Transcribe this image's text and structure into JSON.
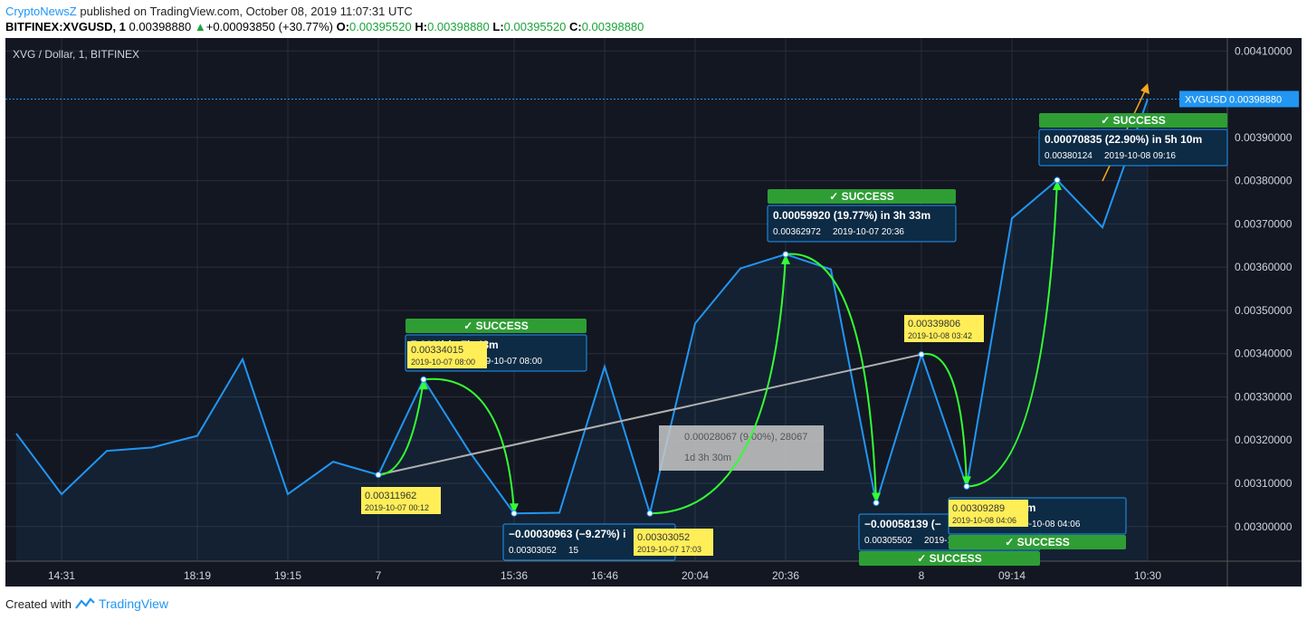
{
  "header": {
    "author": "CryptoNewsZ",
    "published": " published on TradingView.com, October 08, 2019 11:07:31 UTC",
    "symbol": "BITFINEX:XVGUSD, 1",
    "last": "0.00398880",
    "change": "+0.00093850 (+30.77%)",
    "o_label": "O:",
    "o": "0.00395520",
    "h_label": "H:",
    "h": "0.00398880",
    "l_label": "L:",
    "l": "0.00395520",
    "c_label": "C:",
    "c": "0.00398880"
  },
  "footer": {
    "created_with": "Created with",
    "brand": "TradingView"
  },
  "colors": {
    "background": "#131722",
    "line": "#2196f3",
    "success": "#2e9e34",
    "arrow": "#33ff33",
    "info_box": "#0d2b45",
    "yellow": "#ffee58",
    "trend": "#b0b0b0",
    "orange_arrow": "#f5a623"
  },
  "chart_data": {
    "type": "line",
    "title": "XVG / Dollar, 1, BITFINEX",
    "price_label": "XVGUSD",
    "current_price": 0.0039888,
    "current_price_text": "0.00398880",
    "ylim": [
      0.00292,
      0.00413
    ],
    "y_ticks": [
      0.003,
      0.0031,
      0.0032,
      0.0033,
      0.0034,
      0.0035,
      0.0036,
      0.0037,
      0.0038,
      0.0039,
      0.0041
    ],
    "y_tick_labels": [
      "0.00300000",
      "0.00310000",
      "0.00320000",
      "0.00330000",
      "0.00340000",
      "0.00350000",
      "0.00360000",
      "0.00370000",
      "0.00380000",
      "0.00390000",
      "0.00410000"
    ],
    "x_tick_labels": [
      "14:31",
      "18:19",
      "19:15",
      "7",
      "15:36",
      "16:46",
      "20:04",
      "20:36",
      "8",
      "09:14",
      "10:30"
    ],
    "x_tick_index": [
      2,
      8,
      12,
      16,
      22,
      26,
      30,
      34,
      40,
      44,
      50
    ],
    "series": [
      {
        "values": [
          0.003215,
          0.003075,
          0.003175,
          0.003183,
          0.00321,
          0.003387,
          0.003075,
          0.00315,
          0.00311962,
          0.00334015,
          0.003175,
          0.00303052,
          0.003032,
          0.00337,
          0.00303052,
          0.00347,
          0.003597,
          0.00362972,
          0.003595,
          0.00305502,
          0.00339806,
          0.00309289,
          0.003713,
          0.00380124,
          0.003692,
          0.0039888
        ]
      }
    ],
    "annotations": {
      "success_label": "SUCCESS",
      "boxes": [
        {
          "main": "0.00070835 (22.90%) in 5h 10m",
          "sub": "0.00380124",
          "date": "2019-10-08  09:16"
        },
        {
          "main": "0.00059920 (19.77%) in 3h 33m",
          "sub": "0.00362972",
          "date": "2019-10-07  20:36"
        },
        {
          "main": "7.00%) in 7h 48m",
          "sub": "",
          "date": "2019-10-07  08:00"
        },
        {
          "main": "−0.00030963 (−9.27%) i",
          "sub": "0.00303052",
          "date": "15"
        },
        {
          "main": "−0.00058139 (−",
          "sub": "0.00305502",
          "date": "2019-10-07  20:"
        },
        {
          "main": "(−8.98%) in 24m",
          "sub": "",
          "date": "019-10-08  04:06"
        }
      ],
      "yellow": [
        {
          "price": "0.00334015",
          "date": "2019-10-07 08:00"
        },
        {
          "price": "0.00311962",
          "date": "2019-10-07 00:12"
        },
        {
          "price": "0.00303052",
          "date": "2019-10-07 17:03"
        },
        {
          "price": "0.00339806",
          "date": "2019-10-08 03:42"
        },
        {
          "price": "0.00309289",
          "date": "2019-10-08 04:06"
        }
      ],
      "measure": {
        "line1": "0.00028067 (9.00%), 28067",
        "line2": "1d 3h 30m"
      }
    }
  }
}
